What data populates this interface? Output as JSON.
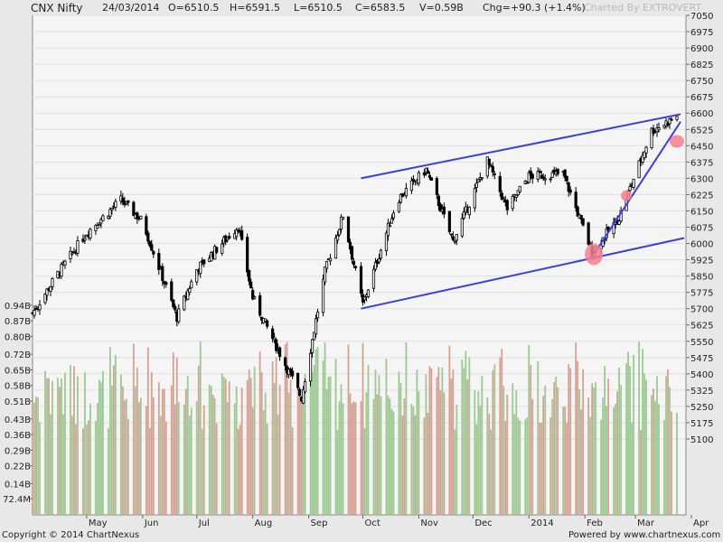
{
  "header": {
    "title": "CNX Nifty",
    "date": "24/03/2014",
    "open": "O=6510.5",
    "high": "H=6591.5",
    "low": "L=6510.5",
    "close": "C=6583.5",
    "volume": "V=0.59B",
    "change": "Chg=+90.3 (+1.4%)",
    "charted_by": "Charted By EXTROVERT"
  },
  "footer": {
    "copyright": "Copyright © 2014 ChartNexus",
    "powered_by": "Powered by www.chartnexus.com"
  },
  "colors": {
    "up_volume": "#9ec994",
    "down_volume": "#d4a294",
    "trendline": "#3d3de0",
    "highlight": "#f47f8e"
  },
  "chart_data": {
    "type": "candlestick",
    "title": "CNX Nifty",
    "price_axis": {
      "ticks": [
        7050,
        6975,
        6900,
        6825,
        6750,
        6675,
        6600,
        6525,
        6450,
        6375,
        6300,
        6225,
        6150,
        6075,
        6000,
        5925,
        5850,
        5775,
        5700,
        5625,
        5550,
        5475,
        5400,
        5325,
        5250,
        5175,
        5100
      ],
      "range": [
        5100,
        7050
      ]
    },
    "volume_axis": {
      "labels": [
        "0.94B",
        "0.87B",
        "0.80B",
        "0.72B",
        "0.65B",
        "0.58B",
        "0.51B",
        "0.43B",
        "0.36B",
        "0.29B",
        "0.22B",
        "0.14B",
        "72.4M"
      ],
      "values": [
        0.94,
        0.87,
        0.8,
        0.72,
        0.65,
        0.58,
        0.51,
        0.43,
        0.36,
        0.29,
        0.22,
        0.14,
        0.0724
      ]
    },
    "x_axis": {
      "labels": [
        "May",
        "Jun",
        "Jul",
        "Aug",
        "Sep",
        "Oct",
        "Nov",
        "Dec",
        "2014",
        "Feb",
        "Mar",
        "Apr"
      ]
    },
    "price_path": [
      {
        "date": "2013-04-01",
        "close": 5680
      },
      {
        "date": "2013-04-15",
        "close": 5860
      },
      {
        "date": "2013-05-01",
        "close": 6050
      },
      {
        "date": "2013-05-20",
        "close": 6200
      },
      {
        "date": "2013-06-01",
        "close": 6100
      },
      {
        "date": "2013-06-20",
        "close": 5660
      },
      {
        "date": "2013-07-01",
        "close": 5880
      },
      {
        "date": "2013-07-24",
        "close": 6080
      },
      {
        "date": "2013-08-01",
        "close": 5750
      },
      {
        "date": "2013-08-28",
        "close": 5290
      },
      {
        "date": "2013-09-10",
        "close": 5870
      },
      {
        "date": "2013-09-20",
        "close": 6130
      },
      {
        "date": "2013-10-01",
        "close": 5720
      },
      {
        "date": "2013-10-20",
        "close": 6200
      },
      {
        "date": "2013-11-05",
        "close": 6340
      },
      {
        "date": "2013-11-20",
        "close": 6010
      },
      {
        "date": "2013-12-09",
        "close": 6380
      },
      {
        "date": "2013-12-20",
        "close": 6160
      },
      {
        "date": "2014-01-01",
        "close": 6310
      },
      {
        "date": "2014-01-20",
        "close": 6320
      },
      {
        "date": "2014-02-05",
        "close": 5960
      },
      {
        "date": "2014-02-20",
        "close": 6120
      },
      {
        "date": "2014-03-10",
        "close": 6520
      },
      {
        "date": "2014-03-24",
        "close": 6583.5
      }
    ],
    "trendlines": [
      {
        "name": "upper channel",
        "from": {
          "date": "2013-09-30",
          "price": 6300
        },
        "to": {
          "date": "2014-03-26",
          "price": 6595
        }
      },
      {
        "name": "lower channel",
        "from": {
          "date": "2013-09-30",
          "price": 5700
        },
        "to": {
          "date": "2014-03-28",
          "price": 6025
        }
      },
      {
        "name": "short-term uptrend",
        "from": {
          "date": "2014-02-06",
          "price": 5950
        },
        "to": {
          "date": "2014-03-26",
          "price": 6560
        }
      }
    ],
    "highlights": [
      {
        "date": "2014-02-06",
        "price": 5950
      },
      {
        "date": "2014-02-24",
        "price": 6220
      },
      {
        "date": "2014-03-24",
        "price": 6470
      }
    ]
  }
}
